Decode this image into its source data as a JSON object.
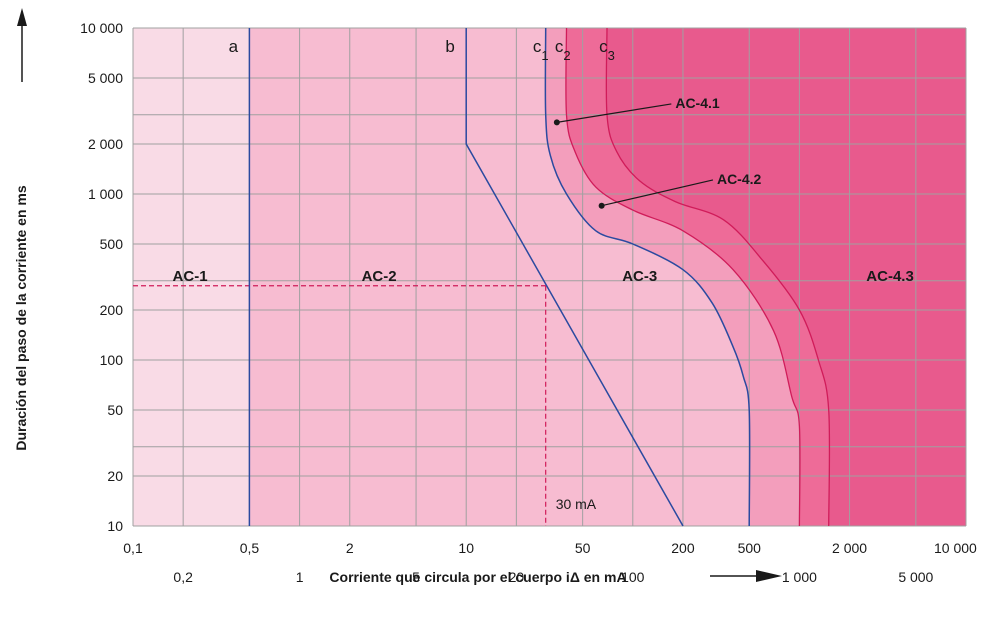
{
  "chart_data": {
    "type": "area",
    "x_scale": "log",
    "y_scale": "log",
    "xlim": [
      0.1,
      10000
    ],
    "ylim": [
      10,
      10000
    ],
    "grid": true,
    "xlabel": "Corriente que circula por el cuerpo  iΔ en mA",
    "ylabel": "Duración del paso de la corriente en ms",
    "x_tick_labels_upper": [
      {
        "value": 0.1,
        "label": "0,1"
      },
      {
        "value": 0.5,
        "label": "0,5"
      },
      {
        "value": 2,
        "label": "2"
      },
      {
        "value": 10,
        "label": "10"
      },
      {
        "value": 50,
        "label": "50"
      },
      {
        "value": 200,
        "label": "200"
      },
      {
        "value": 500,
        "label": "500"
      },
      {
        "value": 2000,
        "label": "2 000"
      },
      {
        "value": 10000,
        "label": "10 000"
      }
    ],
    "x_tick_labels_lower": [
      {
        "value": 0.2,
        "label": "0,2"
      },
      {
        "value": 1,
        "label": "1"
      },
      {
        "value": 5,
        "label": "5"
      },
      {
        "value": 20,
        "label": "20"
      },
      {
        "value": 100,
        "label": "100"
      },
      {
        "value": 1000,
        "label": "1 000"
      },
      {
        "value": 5000,
        "label": "5 000"
      }
    ],
    "y_tick_labels": [
      {
        "value": 10000,
        "label": "10 000"
      },
      {
        "value": 5000,
        "label": "5 000"
      },
      {
        "value": 2000,
        "label": "2 000"
      },
      {
        "value": 1000,
        "label": "1 000"
      },
      {
        "value": 500,
        "label": "500"
      },
      {
        "value": 200,
        "label": "200"
      },
      {
        "value": 100,
        "label": "100"
      },
      {
        "value": 50,
        "label": "50"
      },
      {
        "value": 20,
        "label": "20"
      },
      {
        "value": 10,
        "label": "10"
      }
    ],
    "curves": [
      {
        "name": "a",
        "points": [
          [
            0.5,
            10000
          ],
          [
            0.5,
            10
          ]
        ]
      },
      {
        "name": "b",
        "points": [
          [
            10,
            10000
          ],
          [
            10,
            2000
          ],
          [
            200,
            10
          ]
        ]
      },
      {
        "name": "c1",
        "points": [
          [
            30,
            10000
          ],
          [
            30,
            3000
          ],
          [
            32,
            1700
          ],
          [
            40,
            1000
          ],
          [
            60,
            600
          ],
          [
            100,
            500
          ],
          [
            200,
            350
          ],
          [
            300,
            220
          ],
          [
            400,
            120
          ],
          [
            460,
            80
          ],
          [
            500,
            50
          ],
          [
            500,
            10
          ]
        ]
      },
      {
        "name": "c2",
        "points": [
          [
            40,
            10000
          ],
          [
            40,
            3000
          ],
          [
            45,
            1800
          ],
          [
            60,
            1100
          ],
          [
            100,
            800
          ],
          [
            200,
            600
          ],
          [
            400,
            350
          ],
          [
            700,
            150
          ],
          [
            900,
            60
          ],
          [
            1000,
            40
          ],
          [
            1000,
            10
          ]
        ]
      },
      {
        "name": "c3",
        "points": [
          [
            70,
            10000
          ],
          [
            70,
            3000
          ],
          [
            80,
            1800
          ],
          [
            110,
            1200
          ],
          [
            180,
            900
          ],
          [
            350,
            700
          ],
          [
            600,
            400
          ],
          [
            1000,
            200
          ],
          [
            1300,
            100
          ],
          [
            1500,
            50
          ],
          [
            1500,
            10
          ]
        ]
      }
    ],
    "curve_labels": [
      {
        "name": "a",
        "label": "a",
        "x": 0.4
      },
      {
        "name": "b",
        "label": "b",
        "x": 8
      },
      {
        "name": "c1",
        "label": "c",
        "sub": "1",
        "x": 28
      },
      {
        "name": "c2",
        "label": "c",
        "sub": "2",
        "x": 38
      },
      {
        "name": "c3",
        "label": "c",
        "sub": "3",
        "x": 70
      }
    ],
    "zones": [
      {
        "label": "AC-1",
        "x": 0.22,
        "y": 300
      },
      {
        "label": "AC-2",
        "x": 3,
        "y": 300
      },
      {
        "label": "AC-3",
        "x": 110,
        "y": 300
      },
      {
        "label": "AC-4.3",
        "x": 3500,
        "y": 300
      }
    ],
    "annotations": [
      {
        "label": "AC-4.1",
        "point": [
          35,
          2700
        ],
        "text_at": [
          180,
          3300
        ]
      },
      {
        "label": "AC-4.2",
        "point": [
          65,
          850
        ],
        "text_at": [
          320,
          1150
        ]
      }
    ],
    "reference": {
      "label": "30 mA",
      "x": 30,
      "y": 280
    },
    "colors": {
      "ac1": "#f9dbe6",
      "ac2": "#f7bcd1",
      "ac3": "#f39ebc",
      "ac41": "#f17ea6",
      "ac42": "#ee6b98",
      "ac43": "#e85a8d",
      "grid": "#a0a0a0",
      "curve_blue": "#2b4aa0",
      "curve_red": "#d01c5a",
      "dashed": "#d01c5a"
    }
  }
}
